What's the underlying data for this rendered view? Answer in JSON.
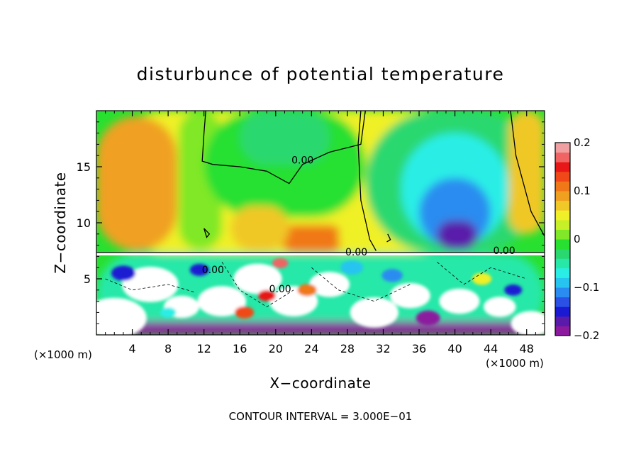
{
  "chart_data": {
    "type": "heatmap",
    "title": "disturbunce of potential temperature",
    "xlabel": "X−coordinate",
    "ylabel": "Z−coordinate",
    "x_unit_label": "(×1000 m)",
    "y_unit_label": "(×1000 m)",
    "xlim": [
      0,
      50
    ],
    "ylim": [
      0,
      20
    ],
    "x_ticks": [
      4,
      8,
      12,
      16,
      20,
      24,
      28,
      32,
      36,
      40,
      44,
      48
    ],
    "x_tick_labels": [
      "4",
      "8",
      "12",
      "16",
      "20",
      "24",
      "28",
      "32",
      "36",
      "40",
      "44",
      "48"
    ],
    "y_ticks": [
      5,
      10,
      15
    ],
    "y_tick_labels": [
      "5",
      "10",
      "15"
    ],
    "contour_interval_text": "CONTOUR INTERVAL = 3.000E−01",
    "contour_labels": [
      {
        "text": "0.00",
        "x": 23.0,
        "y": 15.3
      },
      {
        "text": "0.00",
        "x": 29.0,
        "y": 7.1
      },
      {
        "text": "0.00",
        "x": 45.5,
        "y": 7.2
      },
      {
        "text": "0.00",
        "x": 13.0,
        "y": 5.5
      },
      {
        "text": "0.00",
        "x": 20.5,
        "y": 3.8
      }
    ],
    "colorbar": {
      "min": -0.2,
      "max": 0.2,
      "tick_values": [
        0.2,
        0.1,
        0,
        -0.1,
        -0.2
      ],
      "tick_labels": [
        "0.2",
        "0.1",
        "0",
        "−0.1",
        "−0.2"
      ],
      "colors": [
        "#8c1a9e",
        "#5a1aaa",
        "#1a1ad2",
        "#2a50e6",
        "#2a8cf0",
        "#28c4f0",
        "#2aeee6",
        "#28e8a8",
        "#2ad870",
        "#28e030",
        "#80e828",
        "#c8f028",
        "#f0f028",
        "#f0c828",
        "#f0a020",
        "#f07818",
        "#f04818",
        "#e81818",
        "#f06464",
        "#f0a0a0"
      ]
    },
    "field_regions": [
      {
        "level": 0.04,
        "x": 0,
        "x2": 50,
        "y": 7.3,
        "y2": 20
      },
      {
        "level": 0.13,
        "x": 0.8,
        "x2": 7.5,
        "y": 8.8,
        "y2": 18.6
      },
      {
        "level": 0.09,
        "x": 0,
        "x2": 9,
        "y": 7.5,
        "y2": 19.5
      },
      {
        "level": 0.02,
        "x": 9.2,
        "x2": 14,
        "y": 7.6,
        "y2": 20
      },
      {
        "level": -0.005,
        "x": 12,
        "x2": 30,
        "y": 10.5,
        "y2": 20
      },
      {
        "level": -0.03,
        "x": 16,
        "x2": 26,
        "y": 15.2,
        "y2": 20
      },
      {
        "level": 0.1,
        "x": 20.5,
        "x2": 27.5,
        "y": 7.4,
        "y2": 9.8
      },
      {
        "level": 0.07,
        "x": 15,
        "x2": 21.5,
        "y": 7.5,
        "y2": 11.5
      },
      {
        "level": 0.05,
        "x": 27,
        "x2": 31.5,
        "y": 7.5,
        "y2": 10
      },
      {
        "level": -0.03,
        "x": 30,
        "x2": 50,
        "y": 7.3,
        "y2": 20
      },
      {
        "level": -0.08,
        "x": 34,
        "x2": 46,
        "y": 8,
        "y2": 18
      },
      {
        "level": -0.12,
        "x": 36,
        "x2": 44,
        "y": 7.8,
        "y2": 14
      },
      {
        "level": -0.17,
        "x": 38,
        "x2": 42.5,
        "y": 7.6,
        "y2": 10.2
      },
      {
        "level": 0.07,
        "x": 46,
        "x2": 50,
        "y": 9,
        "y2": 20
      },
      {
        "level": -0.05,
        "x": 0,
        "x2": 50,
        "y": 0,
        "y2": 7.3
      },
      {
        "level": -0.2,
        "x": 0,
        "x2": 50,
        "y": 0,
        "y2": 1.2
      }
    ],
    "grid": false,
    "legend": "colorbar-right"
  }
}
